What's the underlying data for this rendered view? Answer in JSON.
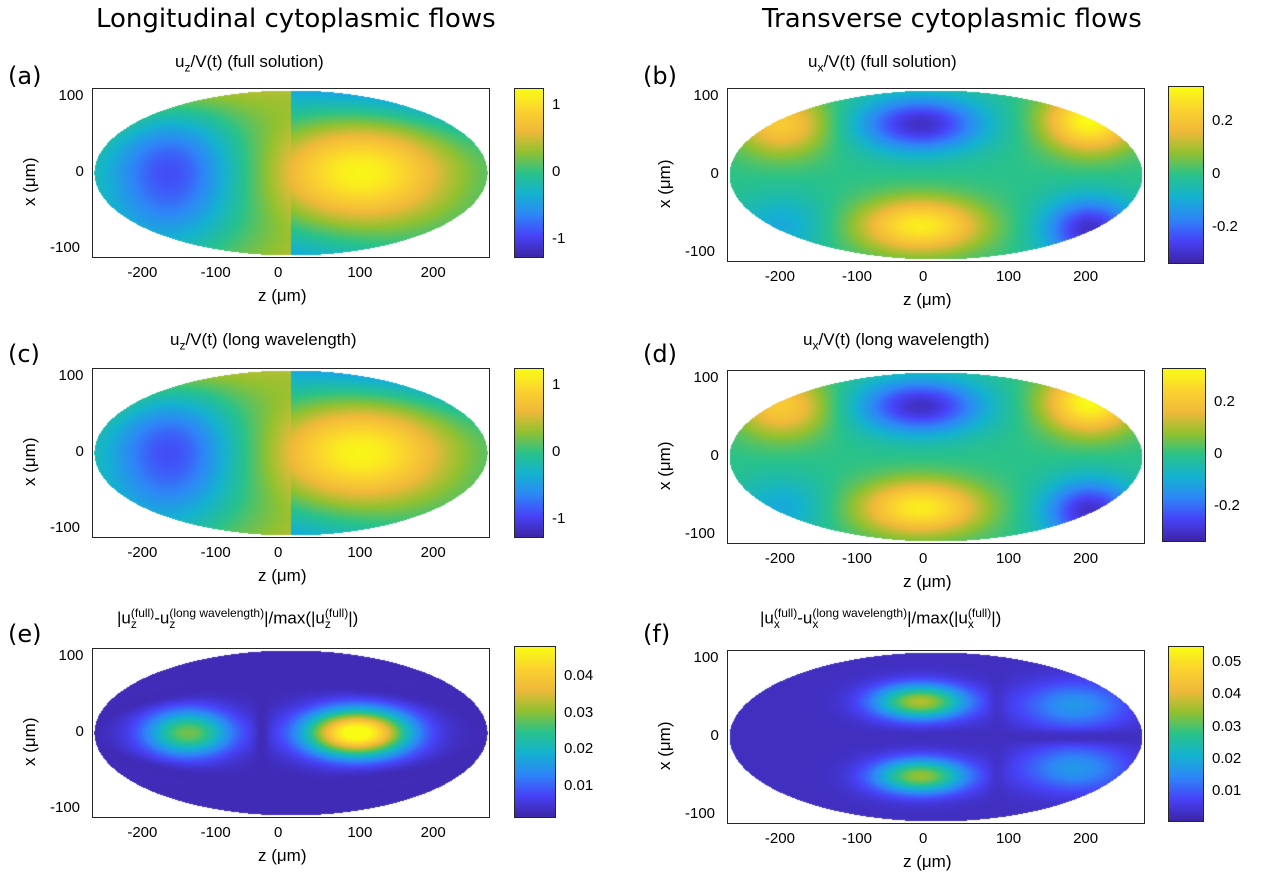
{
  "column_titles": {
    "left": "Longitudinal cytoplasmic flows",
    "right": "Transverse cytoplasmic flows"
  },
  "colormap": [
    "#3e26a8",
    "#4743f8",
    "#2e87f7",
    "#14b2d0",
    "#29c28a",
    "#92c130",
    "#f0b93a",
    "#fbd32f",
    "#f9fb15"
  ],
  "chart_data": [
    {
      "panel": "(a)",
      "type": "heatmap",
      "title_parts": {
        "base": "u",
        "sub": "z",
        "rest": "/V(t) (full solution)"
      },
      "xlabel": "z (μm)",
      "ylabel": "x (μm)",
      "xticks": [
        "-200",
        "-100",
        "0",
        "100",
        "200"
      ],
      "yticks": [
        "100",
        "0",
        "-100"
      ],
      "xlim": [
        -270,
        270
      ],
      "ylim": [
        -110,
        110
      ],
      "colorbar": {
        "ticks": [
          "1",
          "0",
          "-1"
        ],
        "range": [
          -1.25,
          1.25
        ]
      },
      "field": "uz"
    },
    {
      "panel": "(b)",
      "type": "heatmap",
      "title_parts": {
        "base": "u",
        "sub": "x",
        "rest": "/V(t) (full solution)"
      },
      "xlabel": "z (μm)",
      "ylabel": "x (μm)",
      "xticks": [
        "-200",
        "-100",
        "0",
        "100",
        "200"
      ],
      "yticks": [
        "100",
        "0",
        "-100"
      ],
      "xlim": [
        -270,
        270
      ],
      "ylim": [
        -110,
        110
      ],
      "colorbar": {
        "ticks": [
          "0.2",
          "0",
          "-0.2"
        ],
        "range": [
          -0.33,
          0.33
        ]
      },
      "field": "ux"
    },
    {
      "panel": "(c)",
      "type": "heatmap",
      "title_parts": {
        "base": "u",
        "sub": "z",
        "rest": "/V(t) (long wavelength)"
      },
      "xlabel": "z (μm)",
      "ylabel": "x (μm)",
      "xticks": [
        "-200",
        "-100",
        "0",
        "100",
        "200"
      ],
      "yticks": [
        "100",
        "0",
        "-100"
      ],
      "xlim": [
        -270,
        270
      ],
      "ylim": [
        -110,
        110
      ],
      "colorbar": {
        "ticks": [
          "1",
          "0",
          "-1"
        ],
        "range": [
          -1.25,
          1.25
        ]
      },
      "field": "uz"
    },
    {
      "panel": "(d)",
      "type": "heatmap",
      "title_parts": {
        "base": "u",
        "sub": "x",
        "rest": "/V(t) (long wavelength)"
      },
      "xlabel": "z (μm)",
      "ylabel": "x (μm)",
      "xticks": [
        "-200",
        "-100",
        "0",
        "100",
        "200"
      ],
      "yticks": [
        "100",
        "0",
        "-100"
      ],
      "xlim": [
        -270,
        270
      ],
      "ylim": [
        -110,
        110
      ],
      "colorbar": {
        "ticks": [
          "0.2",
          "0",
          "-0.2"
        ],
        "range": [
          -0.33,
          0.33
        ]
      },
      "field": "ux"
    },
    {
      "panel": "(e)",
      "type": "heatmap",
      "title_text": "|u_z^(full)-u_z^(long wavelength)|/max(|u_z^(full)|)",
      "title_parts": {
        "pre": "|u",
        "sup1": "(full)",
        "sub1": "z",
        "mid": "-u",
        "sup2": "(long wavelength)",
        "sub2": "z",
        "mid2": "|/max(|u",
        "sup3": "(full)",
        "sub3": "z",
        "end": "|)"
      },
      "xlabel": "z (μm)",
      "ylabel": "x (μm)",
      "xticks": [
        "-200",
        "-100",
        "0",
        "100",
        "200"
      ],
      "yticks": [
        "100",
        "0",
        "-100"
      ],
      "xlim": [
        -270,
        270
      ],
      "ylim": [
        -110,
        110
      ],
      "colorbar": {
        "ticks": [
          "0.04",
          "0.03",
          "0.02",
          "0.01"
        ],
        "range": [
          0.002,
          0.048
        ]
      },
      "field": "ez"
    },
    {
      "panel": "(f)",
      "type": "heatmap",
      "title_text": "|u_x^(full)-u_x^(long wavelength)|/max(|u_x^(full)|)",
      "title_parts": {
        "pre": "|u",
        "sup1": "(full)",
        "sub1": "x",
        "mid": "-u",
        "sup2": "(long wavelength)",
        "sub2": "x",
        "mid2": "|/max(|u",
        "sup3": "(full)",
        "sub3": "x",
        "end": "|)"
      },
      "xlabel": "z (μm)",
      "ylabel": "x (μm)",
      "xticks": [
        "-200",
        "-100",
        "0",
        "100",
        "200"
      ],
      "yticks": [
        "100",
        "0",
        "-100"
      ],
      "xlim": [
        -270,
        270
      ],
      "ylim": [
        -110,
        110
      ],
      "colorbar": {
        "ticks": [
          "0.05",
          "0.04",
          "0.03",
          "0.02",
          "0.01"
        ],
        "range": [
          0.001,
          0.055
        ]
      },
      "field": "ex"
    }
  ]
}
